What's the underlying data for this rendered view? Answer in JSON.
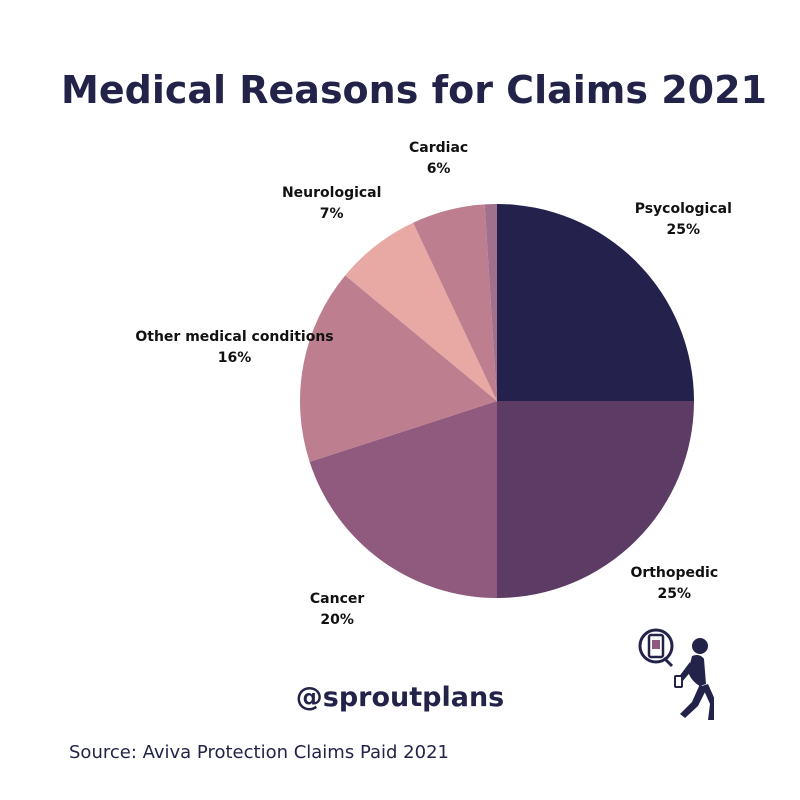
{
  "title": "Medical Reasons for Claims 2021",
  "handle": "@sproutplans",
  "source": "Source: Aviva Protection Claims Paid 2021",
  "logo_icon": "walking-person-with-phone-icon",
  "chart_data": {
    "type": "pie",
    "title": "Medical Reasons for Claims 2021",
    "start_angle_deg": 0,
    "direction": "clockwise",
    "slices": [
      {
        "label": "Psycological",
        "value": 25,
        "value_label": "25%",
        "color": "#24224d"
      },
      {
        "label": "Orthopedic",
        "value": 25,
        "value_label": "25%",
        "color": "#5c3b64"
      },
      {
        "label": "Cancer",
        "value": 20,
        "value_label": "20%",
        "color": "#8f5a7d"
      },
      {
        "label": "Other medical conditions",
        "value": 16,
        "value_label": "16%",
        "color": "#bd7e8f"
      },
      {
        "label": "Neurological",
        "value": 7,
        "value_label": "7%",
        "color": "#e8a9a5"
      },
      {
        "label": "Cardiac",
        "value": 6,
        "value_label": "6%",
        "color": "#bd7e8f"
      },
      {
        "label": "",
        "value": 1,
        "value_label": "",
        "color": "#a1708d"
      }
    ]
  }
}
